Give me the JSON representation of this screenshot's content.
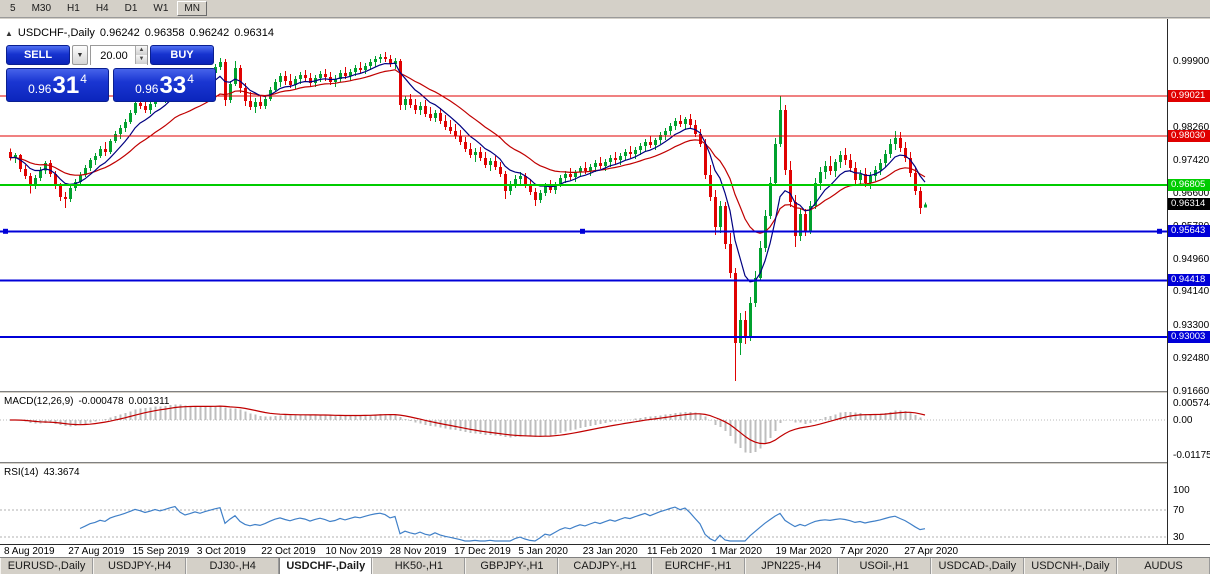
{
  "toolbar": {
    "timeframes": [
      {
        "label": "5",
        "raised": false
      },
      {
        "label": "M30",
        "raised": false
      },
      {
        "label": "H1",
        "raised": false
      },
      {
        "label": "H4",
        "raised": false
      },
      {
        "label": "D1",
        "raised": false
      },
      {
        "label": "W1",
        "raised": false
      },
      {
        "label": "MN",
        "raised": true
      }
    ]
  },
  "icons": {
    "collapse": "▲",
    "dropdown": "▼",
    "spin_up": "▲",
    "spin_down": "▼"
  },
  "chart": {
    "title": "USDCHF-,Daily",
    "ohlc": {
      "open": "0.96242",
      "high": "0.96358",
      "low": "0.96242",
      "close": "0.96314"
    },
    "one_click": {
      "sell_label": "SELL",
      "buy_label": "BUY",
      "volume": "20.00",
      "sell_price": {
        "base": "0.96",
        "big": "31",
        "sup": "4"
      },
      "buy_price": {
        "base": "0.96",
        "big": "33",
        "sup": "4"
      }
    },
    "price_axis": [
      "0.99900",
      "0.99080",
      "0.98260",
      "0.97420",
      "0.96600",
      "0.95780",
      "0.94960",
      "0.94140",
      "0.93300",
      "0.92480",
      "0.91660"
    ],
    "levels": [
      {
        "value": 0.99021,
        "label": "0.99021",
        "color": "#E00000",
        "width": 1,
        "selected": false
      },
      {
        "value": 0.9803,
        "label": "0.98030",
        "color": "#E00000",
        "width": 1,
        "selected": false
      },
      {
        "value": 0.96805,
        "label": "0.96805",
        "color": "#00CC00",
        "width": 2,
        "selected": false
      },
      {
        "value": 0.95643,
        "label": "0.95643",
        "color": "#0000D8",
        "width": 2,
        "selected": true
      },
      {
        "value": 0.94418,
        "label": "0.94418",
        "color": "#0000D8",
        "width": 2,
        "selected": false
      },
      {
        "value": 0.93003,
        "label": "0.93003",
        "color": "#0000D8",
        "width": 2,
        "selected": false
      }
    ],
    "current_price": {
      "label": "0.96314",
      "value": 0.96314,
      "bg": "#000000"
    },
    "colors": {
      "bull": "#00A12E",
      "bear": "#E00202",
      "ma_fast": "#000080",
      "ma_slow": "#C00000"
    },
    "candles": [
      [
        0.9762,
        0.9771,
        0.9741,
        0.9748
      ],
      [
        0.9748,
        0.976,
        0.9735,
        0.9755
      ],
      [
        0.9755,
        0.9758,
        0.9712,
        0.972
      ],
      [
        0.972,
        0.973,
        0.9695,
        0.9702
      ],
      [
        0.9702,
        0.971,
        0.9659,
        0.9678
      ],
      [
        0.9678,
        0.9705,
        0.967,
        0.9698
      ],
      [
        0.9698,
        0.9725,
        0.969,
        0.9716
      ],
      [
        0.9716,
        0.974,
        0.9708,
        0.9735
      ],
      [
        0.9735,
        0.9742,
        0.97,
        0.9707
      ],
      [
        0.9707,
        0.9715,
        0.967,
        0.9678
      ],
      [
        0.9678,
        0.9685,
        0.964,
        0.965
      ],
      [
        0.965,
        0.9662,
        0.9622,
        0.9645
      ],
      [
        0.9645,
        0.968,
        0.9638,
        0.9672
      ],
      [
        0.9672,
        0.9695,
        0.9665,
        0.9688
      ],
      [
        0.9688,
        0.9712,
        0.9682,
        0.9705
      ],
      [
        0.9705,
        0.973,
        0.97,
        0.9722
      ],
      [
        0.9722,
        0.9748,
        0.9715,
        0.9742
      ],
      [
        0.9742,
        0.976,
        0.973,
        0.9752
      ],
      [
        0.9752,
        0.9778,
        0.9748,
        0.977
      ],
      [
        0.977,
        0.9788,
        0.9752,
        0.9762
      ],
      [
        0.9762,
        0.9795,
        0.9758,
        0.979
      ],
      [
        0.979,
        0.9815,
        0.9785,
        0.9808
      ],
      [
        0.9808,
        0.983,
        0.9795,
        0.9822
      ],
      [
        0.9822,
        0.9845,
        0.9812,
        0.9838
      ],
      [
        0.9838,
        0.9868,
        0.9832,
        0.986
      ],
      [
        0.986,
        0.9892,
        0.9855,
        0.9885
      ],
      [
        0.9885,
        0.9905,
        0.987,
        0.9878
      ],
      [
        0.9878,
        0.9895,
        0.986,
        0.9868
      ],
      [
        0.9868,
        0.989,
        0.9858,
        0.9882
      ],
      [
        0.9882,
        0.991,
        0.9875,
        0.9902
      ],
      [
        0.9902,
        0.992,
        0.9888,
        0.9895
      ],
      [
        0.9895,
        0.9918,
        0.9885,
        0.9912
      ],
      [
        0.9912,
        0.994,
        0.9905,
        0.9932
      ],
      [
        0.9932,
        0.9955,
        0.992,
        0.9948
      ],
      [
        0.9948,
        0.9958,
        0.9912,
        0.992
      ],
      [
        0.992,
        0.9935,
        0.9895,
        0.9905
      ],
      [
        0.9905,
        0.9925,
        0.9892,
        0.9918
      ],
      [
        0.9918,
        0.9942,
        0.991,
        0.9935
      ],
      [
        0.9935,
        0.995,
        0.9918,
        0.9928
      ],
      [
        0.9928,
        0.9952,
        0.992,
        0.9945
      ],
      [
        0.9945,
        0.9968,
        0.9938,
        0.996
      ],
      [
        0.996,
        0.9982,
        0.9952,
        0.9975
      ],
      [
        0.9975,
        0.9997,
        0.9968,
        0.9988
      ],
      [
        0.9988,
        0.9995,
        0.9878,
        0.9892
      ],
      [
        0.9892,
        0.994,
        0.9885,
        0.9932
      ],
      [
        0.9932,
        0.999,
        0.9928,
        0.9972
      ],
      [
        0.9972,
        0.998,
        0.991,
        0.9922
      ],
      [
        0.9922,
        0.9935,
        0.9878,
        0.989
      ],
      [
        0.989,
        0.9912,
        0.9868,
        0.9875
      ],
      [
        0.9875,
        0.9898,
        0.986,
        0.9888
      ],
      [
        0.9888,
        0.9905,
        0.987,
        0.9878
      ],
      [
        0.9878,
        0.9902,
        0.987,
        0.9895
      ],
      [
        0.9895,
        0.9925,
        0.989,
        0.9918
      ],
      [
        0.9918,
        0.9945,
        0.9912,
        0.9938
      ],
      [
        0.9938,
        0.996,
        0.9925,
        0.9952
      ],
      [
        0.9952,
        0.9965,
        0.993,
        0.994
      ],
      [
        0.994,
        0.9958,
        0.9922,
        0.993
      ],
      [
        0.993,
        0.9952,
        0.992,
        0.9945
      ],
      [
        0.9945,
        0.9962,
        0.9932,
        0.9955
      ],
      [
        0.9955,
        0.9968,
        0.9938,
        0.9948
      ],
      [
        0.9948,
        0.996,
        0.9928,
        0.9935
      ],
      [
        0.9935,
        0.9955,
        0.9925,
        0.9948
      ],
      [
        0.9948,
        0.9965,
        0.9938,
        0.9958
      ],
      [
        0.9958,
        0.997,
        0.994,
        0.995
      ],
      [
        0.995,
        0.9962,
        0.993,
        0.9938
      ],
      [
        0.9938,
        0.9955,
        0.9925,
        0.9945
      ],
      [
        0.9945,
        0.9968,
        0.9938,
        0.996
      ],
      [
        0.996,
        0.9975,
        0.9945,
        0.9952
      ],
      [
        0.9952,
        0.997,
        0.994,
        0.9962
      ],
      [
        0.9962,
        0.998,
        0.9952,
        0.9972
      ],
      [
        0.9972,
        0.9988,
        0.996,
        0.9968
      ],
      [
        0.9968,
        0.9985,
        0.9958,
        0.9978
      ],
      [
        0.9978,
        0.9995,
        0.9968,
        0.9988
      ],
      [
        0.9988,
        1.0002,
        0.9975,
        0.9995
      ],
      [
        0.9995,
        1.0008,
        0.9985,
        1.0
      ],
      [
        1.0,
        1.0012,
        0.9988,
        0.9995
      ],
      [
        0.9995,
        1.0005,
        0.9975,
        0.9982
      ],
      [
        0.9982,
        0.9998,
        0.997,
        0.999
      ],
      [
        0.999,
        0.9995,
        0.9868,
        0.988
      ],
      [
        0.988,
        0.9902,
        0.9868,
        0.9895
      ],
      [
        0.9895,
        0.9908,
        0.9872,
        0.988
      ],
      [
        0.988,
        0.9895,
        0.9858,
        0.9868
      ],
      [
        0.9868,
        0.9888,
        0.9855,
        0.9878
      ],
      [
        0.9878,
        0.9892,
        0.985,
        0.9858
      ],
      [
        0.9858,
        0.9875,
        0.984,
        0.9848
      ],
      [
        0.9848,
        0.9868,
        0.9838,
        0.986
      ],
      [
        0.986,
        0.9872,
        0.9832,
        0.984
      ],
      [
        0.984,
        0.9855,
        0.9818,
        0.9825
      ],
      [
        0.9825,
        0.9842,
        0.9808,
        0.9815
      ],
      [
        0.9815,
        0.9832,
        0.9795,
        0.9802
      ],
      [
        0.9802,
        0.9818,
        0.978,
        0.9788
      ],
      [
        0.9788,
        0.98,
        0.9762,
        0.977
      ],
      [
        0.977,
        0.9785,
        0.9748,
        0.9755
      ],
      [
        0.9755,
        0.9772,
        0.9738,
        0.9762
      ],
      [
        0.9762,
        0.9775,
        0.974,
        0.9748
      ],
      [
        0.9748,
        0.9762,
        0.9722,
        0.973
      ],
      [
        0.973,
        0.9748,
        0.9715,
        0.974
      ],
      [
        0.974,
        0.9752,
        0.9718,
        0.9725
      ],
      [
        0.9725,
        0.9738,
        0.97,
        0.9708
      ],
      [
        0.9708,
        0.9715,
        0.9645,
        0.9665
      ],
      [
        0.9665,
        0.969,
        0.9655,
        0.9682
      ],
      [
        0.9682,
        0.9705,
        0.9672,
        0.9695
      ],
      [
        0.9695,
        0.9712,
        0.968,
        0.9702
      ],
      [
        0.9702,
        0.971,
        0.9672,
        0.968
      ],
      [
        0.968,
        0.9695,
        0.9655,
        0.9662
      ],
      [
        0.9662,
        0.9672,
        0.9627,
        0.9642
      ],
      [
        0.9642,
        0.9668,
        0.9635,
        0.966
      ],
      [
        0.966,
        0.9685,
        0.9652,
        0.9678
      ],
      [
        0.9678,
        0.9692,
        0.966,
        0.9668
      ],
      [
        0.9668,
        0.9688,
        0.9658,
        0.9682
      ],
      [
        0.9682,
        0.9705,
        0.9675,
        0.9698
      ],
      [
        0.9698,
        0.9715,
        0.9685,
        0.9708
      ],
      [
        0.9708,
        0.9722,
        0.9692,
        0.97
      ],
      [
        0.97,
        0.9718,
        0.9688,
        0.9712
      ],
      [
        0.9712,
        0.9728,
        0.97,
        0.9722
      ],
      [
        0.9722,
        0.9738,
        0.9708,
        0.9715
      ],
      [
        0.9715,
        0.9732,
        0.9702,
        0.9725
      ],
      [
        0.9725,
        0.9742,
        0.9712,
        0.9735
      ],
      [
        0.9735,
        0.975,
        0.972,
        0.9728
      ],
      [
        0.9728,
        0.9745,
        0.9715,
        0.9738
      ],
      [
        0.9738,
        0.9755,
        0.9725,
        0.9748
      ],
      [
        0.9748,
        0.9762,
        0.9732,
        0.9742
      ],
      [
        0.9742,
        0.976,
        0.973,
        0.9752
      ],
      [
        0.9752,
        0.977,
        0.9742,
        0.9762
      ],
      [
        0.9762,
        0.9778,
        0.9748,
        0.9758
      ],
      [
        0.9758,
        0.9775,
        0.9745,
        0.9768
      ],
      [
        0.9768,
        0.9785,
        0.9755,
        0.9778
      ],
      [
        0.9778,
        0.9795,
        0.9765,
        0.9788
      ],
      [
        0.9788,
        0.9802,
        0.9772,
        0.978
      ],
      [
        0.978,
        0.9798,
        0.9768,
        0.9792
      ],
      [
        0.9792,
        0.9812,
        0.9782,
        0.9805
      ],
      [
        0.9805,
        0.9822,
        0.9792,
        0.9815
      ],
      [
        0.9815,
        0.9835,
        0.9805,
        0.9828
      ],
      [
        0.9828,
        0.9848,
        0.9818,
        0.984
      ],
      [
        0.984,
        0.9855,
        0.9825,
        0.9832
      ],
      [
        0.9832,
        0.985,
        0.9818,
        0.9845
      ],
      [
        0.9845,
        0.9858,
        0.9822,
        0.983
      ],
      [
        0.983,
        0.9842,
        0.98,
        0.9808
      ],
      [
        0.9808,
        0.982,
        0.9775,
        0.9782
      ],
      [
        0.9782,
        0.9795,
        0.9695,
        0.9705
      ],
      [
        0.9705,
        0.973,
        0.964,
        0.965
      ],
      [
        0.965,
        0.9668,
        0.9555,
        0.9575
      ],
      [
        0.9575,
        0.964,
        0.956,
        0.9628
      ],
      [
        0.9628,
        0.9638,
        0.952,
        0.9532
      ],
      [
        0.9532,
        0.956,
        0.9448,
        0.946
      ],
      [
        0.946,
        0.9472,
        0.919,
        0.9285
      ],
      [
        0.9285,
        0.936,
        0.9255,
        0.9342
      ],
      [
        0.9342,
        0.9365,
        0.9282,
        0.9298
      ],
      [
        0.9298,
        0.94,
        0.929,
        0.9385
      ],
      [
        0.9385,
        0.9465,
        0.9375,
        0.9448
      ],
      [
        0.9448,
        0.954,
        0.944,
        0.9522
      ],
      [
        0.9522,
        0.9618,
        0.9512,
        0.9602
      ],
      [
        0.9602,
        0.97,
        0.9595,
        0.9685
      ],
      [
        0.9685,
        0.9798,
        0.9678,
        0.9782
      ],
      [
        0.9782,
        0.9901,
        0.9775,
        0.9868
      ],
      [
        0.9868,
        0.988,
        0.9705,
        0.9718
      ],
      [
        0.9718,
        0.974,
        0.9625,
        0.9638
      ],
      [
        0.9638,
        0.9655,
        0.9525,
        0.9552
      ],
      [
        0.9552,
        0.9622,
        0.954,
        0.9608
      ],
      [
        0.9608,
        0.962,
        0.9552,
        0.9565
      ],
      [
        0.9565,
        0.964,
        0.9558,
        0.9628
      ],
      [
        0.9628,
        0.9698,
        0.962,
        0.9685
      ],
      [
        0.9685,
        0.9725,
        0.9668,
        0.9712
      ],
      [
        0.9712,
        0.974,
        0.9695,
        0.9728
      ],
      [
        0.9728,
        0.9752,
        0.9705,
        0.9715
      ],
      [
        0.9715,
        0.9745,
        0.97,
        0.9738
      ],
      [
        0.9738,
        0.9765,
        0.9722,
        0.9755
      ],
      [
        0.9755,
        0.9772,
        0.973,
        0.9742
      ],
      [
        0.9742,
        0.9758,
        0.9712,
        0.9722
      ],
      [
        0.9722,
        0.9738,
        0.9682,
        0.9692
      ],
      [
        0.9692,
        0.9718,
        0.968,
        0.9708
      ],
      [
        0.9708,
        0.9722,
        0.9675,
        0.9685
      ],
      [
        0.9685,
        0.9712,
        0.967,
        0.9702
      ],
      [
        0.9702,
        0.9728,
        0.969,
        0.9718
      ],
      [
        0.9718,
        0.9745,
        0.9705,
        0.9735
      ],
      [
        0.9735,
        0.9768,
        0.9725,
        0.9758
      ],
      [
        0.9758,
        0.9795,
        0.9748,
        0.9782
      ],
      [
        0.9782,
        0.9815,
        0.9768,
        0.9798
      ],
      [
        0.9798,
        0.9812,
        0.9762,
        0.9772
      ],
      [
        0.9772,
        0.9788,
        0.9738,
        0.9748
      ],
      [
        0.9748,
        0.9762,
        0.97,
        0.971
      ],
      [
        0.971,
        0.9722,
        0.9655,
        0.9665
      ],
      [
        0.9665,
        0.9675,
        0.9608,
        0.9622
      ],
      [
        0.96242,
        0.96358,
        0.96242,
        0.96314
      ]
    ]
  },
  "macd": {
    "label": "MACD(12,26,9)",
    "value_main": "-0.000478",
    "value_signal": "0.001311",
    "axis_labels": [
      "0.005744",
      "0.00",
      "-0.011758"
    ],
    "colors": {
      "histogram": "#BDBDBD",
      "signal": "#C00000"
    }
  },
  "rsi": {
    "label": "RSI(14)",
    "value": "43.3674",
    "axis_labels": [
      "100",
      "70",
      "30"
    ],
    "levels": [
      70,
      30
    ],
    "color": "#4080C8"
  },
  "time_axis": {
    "labels": [
      "8 Aug 2019",
      "27 Aug 2019",
      "15 Sep 2019",
      "3 Oct 2019",
      "22 Oct 2019",
      "10 Nov 2019",
      "28 Nov 2019",
      "17 Dec 2019",
      "5 Jan 2020",
      "23 Jan 2020",
      "11 Feb 2020",
      "1 Mar 2020",
      "19 Mar 2020",
      "7 Apr 2020",
      "27 Apr 2020"
    ]
  },
  "tabs": [
    {
      "label": "EURUSD-,Daily",
      "active": false
    },
    {
      "label": "USDJPY-,H4",
      "active": false
    },
    {
      "label": "DJ30-,H4",
      "active": false
    },
    {
      "label": "USDCHF-,Daily",
      "active": true
    },
    {
      "label": "HK50-,H1",
      "active": false
    },
    {
      "label": "GBPJPY-,H1",
      "active": false
    },
    {
      "label": "CADJPY-,H1",
      "active": false
    },
    {
      "label": "EURCHF-,H1",
      "active": false
    },
    {
      "label": "JPN225-,H4",
      "active": false
    },
    {
      "label": "USOil-,H1",
      "active": false
    },
    {
      "label": "USDCAD-,Daily",
      "active": false
    },
    {
      "label": "USDCNH-,Daily",
      "active": false
    },
    {
      "label": "AUDUS",
      "active": false
    }
  ]
}
